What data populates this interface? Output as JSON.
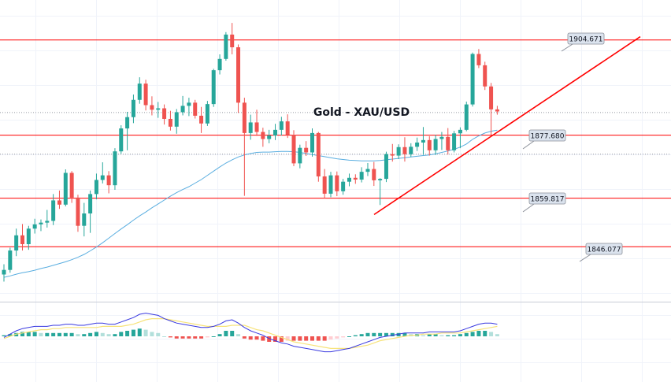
{
  "chart_data": {
    "type": "candlestick",
    "title": "Gold - XAU/USD",
    "ylim": [
      1830.5,
      1916.0
    ],
    "grid": true,
    "colors": {
      "up": "#26a69a",
      "down": "#ef5350",
      "level": "#ff0000",
      "ma": "#5aaee0",
      "macd": "#3a3ae0",
      "signal": "#f7e37a",
      "hist_up_strong": "#26a69a",
      "hist_up_weak": "#b2dfdb",
      "hist_down_strong": "#ef5350",
      "hist_down_weak": "#ffcdd2"
    },
    "levels": [
      {
        "label": "1904.671",
        "value": 1904.671
      },
      {
        "label": "1877.680",
        "value": 1877.68
      },
      {
        "label": "1859.817",
        "value": 1859.817
      },
      {
        "label": "1846.077",
        "value": 1846.077
      }
    ],
    "reference_lines": [
      1884.1,
      1872.3
    ],
    "trendline": {
      "start": [
        0,
        1855.2
      ],
      "end": [
        1,
        1905.6
      ]
    },
    "candles": [
      [
        1838.2,
        1841.1,
        1836.2,
        1839.5
      ],
      [
        1839.5,
        1845.8,
        1838.7,
        1845.0
      ],
      [
        1845.0,
        1851.2,
        1843.4,
        1849.3
      ],
      [
        1849.3,
        1852.5,
        1845.0,
        1846.8
      ],
      [
        1846.8,
        1852.0,
        1845.2,
        1851.2
      ],
      [
        1851.2,
        1854.0,
        1849.8,
        1852.4
      ],
      [
        1852.4,
        1853.8,
        1850.5,
        1852.9
      ],
      [
        1852.9,
        1856.5,
        1851.5,
        1853.4
      ],
      [
        1853.4,
        1861.0,
        1852.2,
        1859.2
      ],
      [
        1859.2,
        1862.0,
        1856.8,
        1858.0
      ],
      [
        1858.0,
        1868.0,
        1857.5,
        1867.0
      ],
      [
        1867.0,
        1867.5,
        1858.5,
        1860.0
      ],
      [
        1860.0,
        1860.8,
        1850.3,
        1852.0
      ],
      [
        1852.0,
        1858.5,
        1849.0,
        1855.5
      ],
      [
        1855.5,
        1862.0,
        1850.0,
        1861.0
      ],
      [
        1861.0,
        1866.8,
        1859.5,
        1865.0
      ],
      [
        1865.0,
        1870.0,
        1864.0,
        1866.3
      ],
      [
        1866.3,
        1867.5,
        1861.2,
        1863.5
      ],
      [
        1863.5,
        1874.0,
        1862.2,
        1873.1
      ],
      [
        1873.1,
        1880.5,
        1872.4,
        1879.6
      ],
      [
        1879.6,
        1884.3,
        1873.4,
        1882.8
      ],
      [
        1882.8,
        1889.2,
        1881.1,
        1887.7
      ],
      [
        1887.7,
        1894.1,
        1886.6,
        1892.3
      ],
      [
        1892.3,
        1893.4,
        1884.7,
        1886.2
      ],
      [
        1886.2,
        1888.7,
        1883.3,
        1884.9
      ],
      [
        1884.9,
        1887.1,
        1882.6,
        1885.3
      ],
      [
        1885.3,
        1886.4,
        1880.7,
        1882.3
      ],
      [
        1882.3,
        1884.6,
        1879.0,
        1880.1
      ],
      [
        1880.1,
        1885.1,
        1878.1,
        1884.2
      ],
      [
        1884.2,
        1888.8,
        1883.3,
        1886.0
      ],
      [
        1886.0,
        1888.3,
        1883.1,
        1886.9
      ],
      [
        1886.9,
        1887.7,
        1882.4,
        1883.2
      ],
      [
        1883.2,
        1885.7,
        1878.3,
        1881.0
      ],
      [
        1881.0,
        1887.4,
        1880.3,
        1886.5
      ],
      [
        1886.5,
        1896.5,
        1885.7,
        1896.1
      ],
      [
        1896.1,
        1900.6,
        1894.9,
        1899.3
      ],
      [
        1899.3,
        1906.9,
        1898.8,
        1906.2
      ],
      [
        1906.2,
        1909.5,
        1900.6,
        1902.6
      ],
      [
        1902.6,
        1903.4,
        1884.0,
        1886.9
      ],
      [
        1886.9,
        1888.3,
        1860.5,
        1878.3
      ],
      [
        1878.3,
        1883.5,
        1876.4,
        1881.3
      ],
      [
        1881.3,
        1884.9,
        1877.5,
        1878.6
      ],
      [
        1878.6,
        1879.8,
        1874.4,
        1876.6
      ],
      [
        1876.6,
        1879.2,
        1875.4,
        1877.6
      ],
      [
        1877.6,
        1880.9,
        1876.3,
        1879.2
      ],
      [
        1879.2,
        1882.9,
        1877.6,
        1881.6
      ],
      [
        1881.6,
        1883.6,
        1876.9,
        1877.8
      ],
      [
        1877.8,
        1879.1,
        1868.9,
        1869.7
      ],
      [
        1869.7,
        1875.0,
        1868.3,
        1874.1
      ],
      [
        1874.1,
        1876.0,
        1871.8,
        1872.8
      ],
      [
        1872.8,
        1879.6,
        1871.6,
        1878.3
      ],
      [
        1878.3,
        1878.6,
        1864.5,
        1866.0
      ],
      [
        1866.0,
        1868.1,
        1859.8,
        1861.1
      ],
      [
        1861.1,
        1867.3,
        1860.1,
        1866.3
      ],
      [
        1866.3,
        1867.4,
        1860.4,
        1861.8
      ],
      [
        1861.8,
        1865.3,
        1860.8,
        1864.5
      ],
      [
        1864.5,
        1866.8,
        1863.2,
        1865.6
      ],
      [
        1865.6,
        1866.6,
        1863.9,
        1865.1
      ],
      [
        1865.1,
        1868.6,
        1864.3,
        1867.3
      ],
      [
        1867.3,
        1869.8,
        1866.1,
        1868.1
      ],
      [
        1868.1,
        1870.1,
        1863.3,
        1864.9
      ],
      [
        1864.9,
        1865.5,
        1857.9,
        1865.3
      ],
      [
        1865.3,
        1873.0,
        1864.4,
        1872.3
      ],
      [
        1872.3,
        1875.2,
        1870.2,
        1871.9
      ],
      [
        1871.9,
        1875.1,
        1870.9,
        1874.3
      ],
      [
        1874.3,
        1877.1,
        1870.2,
        1872.3
      ],
      [
        1872.3,
        1875.4,
        1871.5,
        1874.4
      ],
      [
        1874.4,
        1877.0,
        1873.2,
        1875.6
      ],
      [
        1875.6,
        1880.0,
        1872.1,
        1876.3
      ],
      [
        1876.3,
        1877.4,
        1871.9,
        1873.4
      ],
      [
        1873.4,
        1877.8,
        1872.1,
        1876.6
      ],
      [
        1876.6,
        1878.6,
        1873.5,
        1877.2
      ],
      [
        1877.2,
        1879.7,
        1872.2,
        1873.4
      ],
      [
        1873.4,
        1878.9,
        1872.8,
        1878.2
      ],
      [
        1878.2,
        1879.9,
        1874.0,
        1879.2
      ],
      [
        1879.2,
        1887.2,
        1878.8,
        1886.4
      ],
      [
        1886.4,
        1901.1,
        1885.8,
        1900.7
      ],
      [
        1900.7,
        1902.1,
        1896.7,
        1897.5
      ],
      [
        1897.5,
        1898.5,
        1890.5,
        1891.5
      ],
      [
        1891.5,
        1892.5,
        1877.8,
        1885.0
      ],
      [
        1885.0,
        1886.0,
        1883.5,
        1884.4
      ]
    ],
    "ma": [
      1837.4,
      1837.8,
      1838.3,
      1838.7,
      1839.0,
      1839.4,
      1839.9,
      1840.3,
      1840.8,
      1841.3,
      1841.8,
      1842.4,
      1843.1,
      1843.9,
      1844.9,
      1846.0,
      1847.2,
      1848.5,
      1849.8,
      1851.1,
      1852.3,
      1853.6,
      1854.8,
      1855.9,
      1857.1,
      1858.2,
      1859.3,
      1860.4,
      1861.4,
      1862.3,
      1863.1,
      1864.1,
      1865.1,
      1866.3,
      1867.5,
      1868.7,
      1869.8,
      1870.7,
      1871.5,
      1872.1,
      1872.5,
      1872.8,
      1872.9,
      1872.9,
      1873.0,
      1873.1,
      1873.1,
      1873.0,
      1872.8,
      1872.5,
      1872.2,
      1871.9,
      1871.6,
      1871.3,
      1871.0,
      1870.8,
      1870.6,
      1870.5,
      1870.4,
      1870.4,
      1870.4,
      1870.5,
      1870.7,
      1870.9,
      1871.1,
      1871.3,
      1871.5,
      1871.7,
      1871.9,
      1872.1,
      1872.4,
      1872.8,
      1873.2,
      1873.7,
      1874.3,
      1875.2,
      1876.5,
      1877.5,
      1878.3,
      1878.8,
      1879.1
    ],
    "macd": [
      -0.1,
      0.2,
      0.5,
      0.7,
      0.8,
      0.9,
      0.9,
      0.9,
      1.0,
      1.0,
      1.1,
      1.1,
      1.0,
      1.0,
      1.1,
      1.2,
      1.2,
      1.1,
      1.1,
      1.3,
      1.5,
      1.7,
      2.0,
      2.1,
      2.0,
      1.9,
      1.6,
      1.4,
      1.2,
      1.1,
      1.0,
      0.9,
      0.8,
      0.8,
      0.9,
      1.1,
      1.4,
      1.5,
      1.2,
      0.8,
      0.5,
      0.3,
      0.1,
      -0.2,
      -0.4,
      -0.6,
      -0.7,
      -0.9,
      -1.0,
      -1.1,
      -1.2,
      -1.3,
      -1.4,
      -1.4,
      -1.3,
      -1.2,
      -1.1,
      -0.9,
      -0.7,
      -0.5,
      -0.3,
      -0.1,
      0.0,
      0.1,
      0.2,
      0.3,
      0.3,
      0.3,
      0.3,
      0.4,
      0.4,
      0.4,
      0.4,
      0.4,
      0.5,
      0.7,
      0.9,
      1.1,
      1.2,
      1.2,
      1.1
    ],
    "signal": [
      -0.2,
      0.0,
      0.2,
      0.3,
      0.4,
      0.5,
      0.6,
      0.6,
      0.7,
      0.7,
      0.8,
      0.8,
      0.8,
      0.8,
      0.8,
      0.8,
      0.9,
      0.9,
      0.9,
      0.9,
      1.0,
      1.1,
      1.3,
      1.5,
      1.6,
      1.6,
      1.6,
      1.5,
      1.4,
      1.3,
      1.2,
      1.1,
      1.0,
      0.9,
      0.9,
      0.9,
      0.9,
      1.0,
      1.0,
      1.0,
      0.8,
      0.6,
      0.5,
      0.3,
      0.1,
      -0.1,
      -0.3,
      -0.5,
      -0.6,
      -0.7,
      -0.8,
      -0.9,
      -1.0,
      -1.1,
      -1.1,
      -1.1,
      -1.1,
      -1.0,
      -0.9,
      -0.8,
      -0.6,
      -0.4,
      -0.3,
      -0.2,
      -0.1,
      0.0,
      0.1,
      0.1,
      0.2,
      0.2,
      0.2,
      0.3,
      0.3,
      0.3,
      0.3,
      0.4,
      0.5,
      0.6,
      0.7,
      0.8,
      0.9
    ],
    "hist": [
      0.1,
      0.2,
      0.3,
      0.4,
      0.4,
      0.4,
      0.3,
      0.3,
      0.3,
      0.3,
      0.3,
      0.3,
      0.2,
      0.2,
      0.3,
      0.4,
      0.3,
      0.2,
      0.2,
      0.4,
      0.5,
      0.6,
      0.7,
      0.6,
      0.4,
      0.3,
      0.0,
      -0.1,
      -0.2,
      -0.2,
      -0.2,
      -0.2,
      -0.2,
      -0.1,
      0.0,
      0.2,
      0.5,
      0.5,
      0.2,
      -0.2,
      -0.3,
      -0.3,
      -0.4,
      -0.5,
      -0.5,
      -0.5,
      -0.4,
      -0.4,
      -0.4,
      -0.4,
      -0.4,
      -0.4,
      -0.4,
      -0.3,
      -0.2,
      -0.1,
      0.0,
      0.1,
      0.2,
      0.3,
      0.3,
      0.3,
      0.3,
      0.3,
      0.3,
      0.3,
      0.2,
      0.2,
      0.1,
      0.2,
      0.2,
      0.1,
      0.1,
      0.1,
      0.2,
      0.3,
      0.4,
      0.5,
      0.5,
      0.4,
      0.2
    ]
  }
}
